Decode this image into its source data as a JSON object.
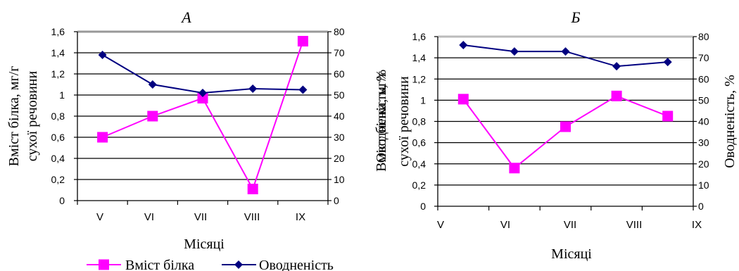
{
  "colors": {
    "protein": "#ff00ff",
    "hydration": "#000080",
    "grid": "#000000"
  },
  "legend": {
    "protein_label": "Вміст білка",
    "hydration_label": "Оводненість"
  },
  "chart_data": [
    {
      "type": "line",
      "title": "А",
      "xlabel": "Місяці",
      "ylabel_left": "Вміст білка, мг/г сухої речовини",
      "ylabel_right": "Оводненість, %",
      "categories": [
        "V",
        "VI",
        "VII",
        "VIII",
        "IX"
      ],
      "ylim_left": [
        0,
        1.6
      ],
      "ylim_right": [
        0,
        80
      ],
      "yticks_left": [
        "0",
        "0,2",
        "0,4",
        "0,6",
        "0,8",
        "1",
        "1,2",
        "1,4",
        "1,6"
      ],
      "yticks_right": [
        "0",
        "10",
        "20",
        "30",
        "40",
        "50",
        "60",
        "70",
        "80"
      ],
      "grid": true,
      "legend_position": "bottom",
      "series": [
        {
          "name": "Вміст білка",
          "axis": "left",
          "marker": "square",
          "values": [
            0.6,
            0.8,
            0.97,
            0.11,
            1.51
          ]
        },
        {
          "name": "Оводненість",
          "axis": "right",
          "marker": "diamond",
          "values": [
            69,
            55,
            51,
            53,
            52.5
          ]
        }
      ]
    },
    {
      "type": "line",
      "title": "Б",
      "xlabel": "Місяці",
      "ylabel_left": "Вміст білка, мг/г сухої речовини",
      "ylabel_right": "Оводненість, %",
      "categories": [
        "V",
        "VI",
        "VII",
        "VIII",
        "IX"
      ],
      "ylim_left": [
        0,
        1.6
      ],
      "ylim_right": [
        0,
        80
      ],
      "yticks_left": [
        "0",
        "0,2",
        "0,4",
        "0,6",
        "0,8",
        "1",
        "1,2",
        "1,4",
        "1,6"
      ],
      "yticks_right": [
        "0",
        "10",
        "20",
        "30",
        "40",
        "50",
        "60",
        "70",
        "80"
      ],
      "grid": true,
      "series": [
        {
          "name": "Вміст білка",
          "axis": "left",
          "marker": "square",
          "values": [
            1.01,
            0.36,
            0.75,
            1.04,
            0.85
          ]
        },
        {
          "name": "Оводненість",
          "axis": "right",
          "marker": "diamond",
          "values": [
            76,
            73,
            73,
            66,
            68
          ]
        }
      ]
    }
  ]
}
